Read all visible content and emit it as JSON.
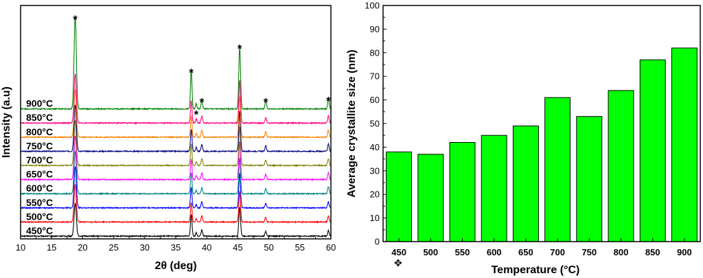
{
  "chart_data": [
    {
      "type": "line",
      "title": "",
      "xlabel": "2θ (deg)",
      "ylabel": "Intensity (a.u)",
      "xlim": [
        10,
        60
      ],
      "xticks": [
        "10",
        "15",
        "20",
        "25",
        "30",
        "35",
        "40",
        "45",
        "50",
        "55",
        "60"
      ],
      "grid": false,
      "peak_positions": [
        18.8,
        37.5,
        38.3,
        39.2,
        45.3,
        49.5,
        59.6
      ],
      "marked_peaks": [
        {
          "x": 18.8,
          "label": "*"
        },
        {
          "x": 37.5,
          "label": "*"
        },
        {
          "x": 38.3,
          "label": "*"
        },
        {
          "x": 39.2,
          "label": "*"
        },
        {
          "x": 45.3,
          "label": "*"
        },
        {
          "x": 49.5,
          "label": "*"
        },
        {
          "x": 59.6,
          "label": "*"
        }
      ],
      "series": [
        {
          "name": "450°C",
          "label": "450°C",
          "color": "#000000",
          "peaks": [
            48,
            32,
            5,
            9,
            42,
            7,
            8
          ]
        },
        {
          "name": "500°C",
          "label": "500°C",
          "color": "#ff0000",
          "peaks": [
            55,
            28,
            5,
            9,
            45,
            7,
            9
          ]
        },
        {
          "name": "550°C",
          "label": "550°C",
          "color": "#0000ff",
          "peaks": [
            60,
            30,
            5,
            9,
            50,
            7,
            9
          ]
        },
        {
          "name": "600°C",
          "label": "600°C",
          "color": "#008080",
          "peaks": [
            62,
            31,
            5,
            9,
            52,
            7,
            10
          ]
        },
        {
          "name": "650°C",
          "label": "650°C",
          "color": "#ff00ff",
          "peaks": [
            64,
            30,
            6,
            10,
            55,
            8,
            10
          ]
        },
        {
          "name": "700°C",
          "label": "700°C",
          "color": "#808000",
          "peaks": [
            66,
            31,
            6,
            10,
            57,
            8,
            10
          ]
        },
        {
          "name": "750°C",
          "label": "750°C",
          "color": "#000080",
          "peaks": [
            68,
            32,
            6,
            10,
            58,
            8,
            11
          ]
        },
        {
          "name": "800°C",
          "label": "800°C",
          "color": "#ff8000",
          "peaks": [
            70,
            31,
            6,
            10,
            60,
            8,
            11
          ]
        },
        {
          "name": "850°C",
          "label": "850°C",
          "color": "#ff0080",
          "peaks": [
            72,
            32,
            6,
            10,
            62,
            8,
            11
          ]
        },
        {
          "name": "900°C",
          "label": "900°C",
          "color": "#008000",
          "peaks": [
            135,
            55,
            8,
            12,
            90,
            12,
            14
          ]
        }
      ]
    },
    {
      "type": "bar",
      "title": "",
      "xlabel": "Temperature (°C)",
      "ylabel": "Average crystallite size (nm)",
      "ylim": [
        0,
        100
      ],
      "yticks": [
        "0",
        "10",
        "20",
        "30",
        "40",
        "50",
        "60",
        "70",
        "80",
        "90",
        "100"
      ],
      "grid": false,
      "bar_color": "#00ff00",
      "categories": [
        "450",
        "500",
        "550",
        "600",
        "650",
        "700",
        "750",
        "800",
        "850",
        "900"
      ],
      "values": [
        38,
        37,
        42,
        45,
        49,
        61,
        53,
        64,
        77,
        82
      ]
    }
  ]
}
